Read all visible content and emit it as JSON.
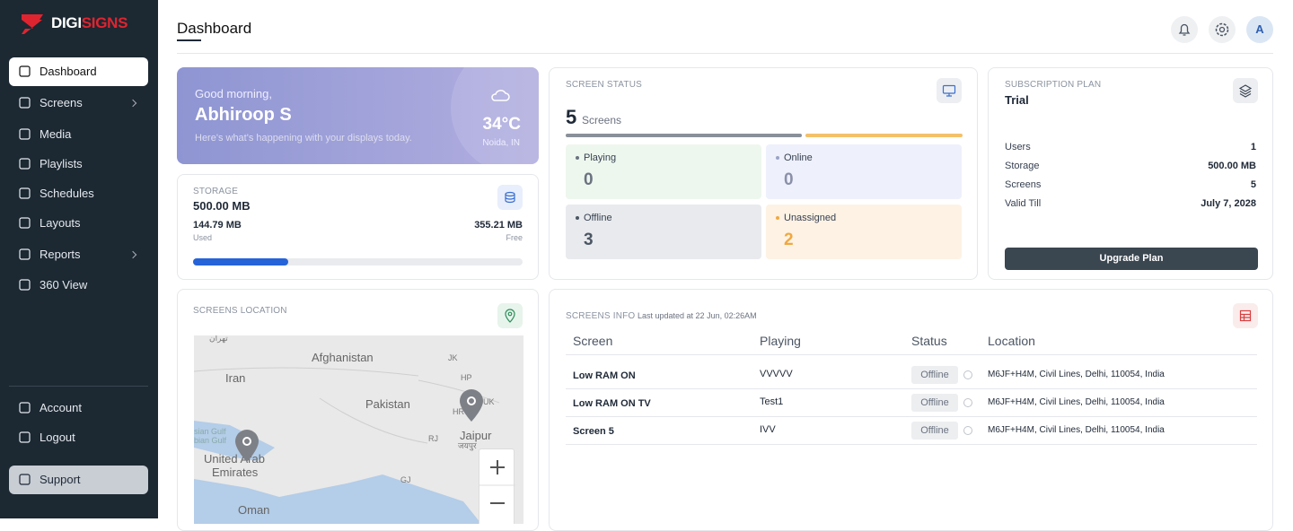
{
  "sidebar": {
    "logo": {
      "part1": "DIGI",
      "part2": "SIGNS"
    },
    "nav": [
      "Dashboard",
      "Screens",
      "Media",
      "Playlists",
      "Schedules",
      "Layouts",
      "Reports",
      "360 View"
    ],
    "footer_nav": [
      "Account",
      "Logout",
      "Support"
    ]
  },
  "header": {
    "title": "Dashboard",
    "avatar": "A"
  },
  "welcome": {
    "greeting": "Good morning,",
    "name": "Abhiroop S",
    "subtitle": "Here's what's happening with your displays today.",
    "temperature": "34°C",
    "location": "Noida, IN"
  },
  "storage": {
    "title": "STORAGE",
    "total": "500.00 MB",
    "used": "144.79 MB",
    "used_label": "Used",
    "free": "355.21 MB",
    "free_label": "Free"
  },
  "screen_status": {
    "title": "SCREEN STATUS",
    "total": 5,
    "total_label": "Screens",
    "tiles": [
      {
        "label": "Playing",
        "count": 0
      },
      {
        "label": "Online",
        "count": 0
      },
      {
        "label": "Offline",
        "count": 3
      },
      {
        "label": "Unassigned",
        "count": 2
      }
    ]
  },
  "subscription": {
    "title": "SUBSCRIPTION PLAN",
    "plan": "Trial",
    "rows": [
      [
        "Users",
        "1"
      ],
      [
        "Storage",
        "500.00 MB"
      ],
      [
        "Screens",
        "5"
      ],
      [
        "Valid Till",
        "July 7, 2028"
      ]
    ],
    "button": "Upgrade Plan"
  },
  "location": {
    "title": "SCREENS LOCATION",
    "map_labels": [
      "تهران",
      "Iran",
      "Afghanistan",
      "Pakistan",
      "JK",
      "HP",
      "HR",
      "UK",
      "RJ",
      "Jaipur",
      "जयपुर",
      "sian Gulf",
      "bian Gulf",
      "United Arab",
      "Emirates",
      "Oman",
      "GJ"
    ]
  },
  "screens_info": {
    "title": "SCREENS INFO",
    "updated": "Last updated at 22 Jun, 02:26AM",
    "columns": [
      "Screen",
      "Playing",
      "Status",
      "Location"
    ],
    "rows": [
      [
        "Low RAM ON",
        "VVVVV",
        "Offline",
        "M6JF+H4M, Civil Lines, Delhi, 110054, India"
      ],
      [
        "Low RAM ON TV",
        "Test1",
        "Offline",
        "M6JF+H4M, Civil Lines, Delhi, 110054, India"
      ],
      [
        "Screen 5",
        "IVV",
        "Offline",
        "M6JF+H4M, Civil Lines, Delhi, 110054, India"
      ]
    ]
  }
}
